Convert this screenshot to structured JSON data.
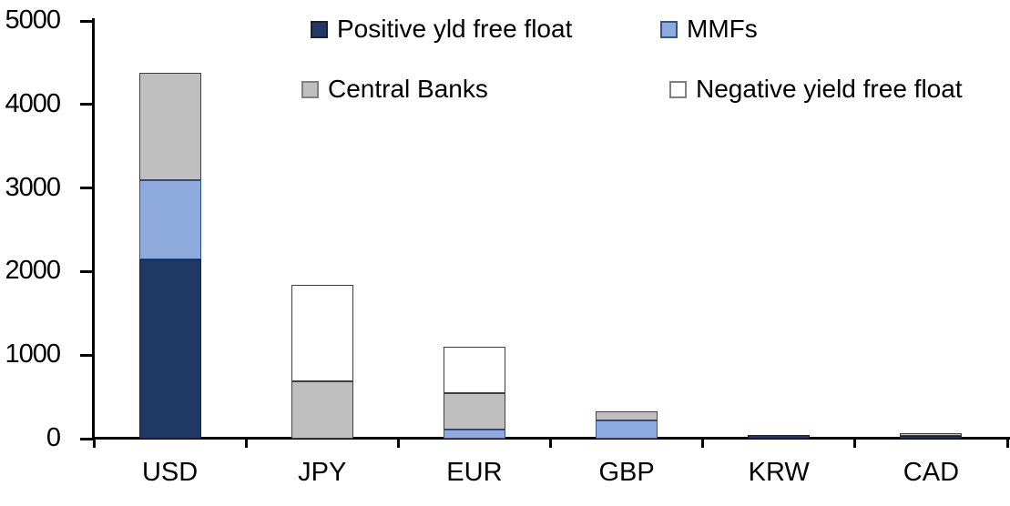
{
  "chart_data": {
    "type": "bar",
    "stacked": true,
    "title": "",
    "xlabel": "",
    "ylabel": "",
    "categories": [
      "USD",
      "JPY",
      "EUR",
      "GBP",
      "KRW",
      "CAD"
    ],
    "series": [
      {
        "name": "Positive yld free float",
        "color": "#1F3864",
        "border_color": "#17233E",
        "values": [
          2150,
          0,
          0,
          0,
          45,
          35
        ]
      },
      {
        "name": "MMFs",
        "color": "#8FAADC",
        "border_color": "#2F5597",
        "values": [
          940,
          0,
          110,
          220,
          0,
          0
        ]
      },
      {
        "name": "Central Banks",
        "color": "#BFBFBF",
        "border_color": "#404040",
        "values": [
          1290,
          690,
          430,
          110,
          0,
          35
        ]
      },
      {
        "name": "Negative yield free float",
        "color": "#FFFFFF",
        "border_color": "#404040",
        "values": [
          0,
          1150,
          560,
          0,
          0,
          0
        ]
      }
    ],
    "totals": [
      4380,
      1840,
      1100,
      330,
      45,
      70
    ],
    "ylim": [
      0,
      5000
    ],
    "yticks": [
      0,
      1000,
      2000,
      3000,
      4000,
      5000
    ],
    "grid": false,
    "legend_position": "top",
    "legend_rows": [
      [
        "Positive yld free float",
        "MMFs"
      ],
      [
        "Central Banks",
        "Negative yield free float"
      ]
    ],
    "axis_color": "#000000",
    "background_color": "#FFFFFF"
  }
}
